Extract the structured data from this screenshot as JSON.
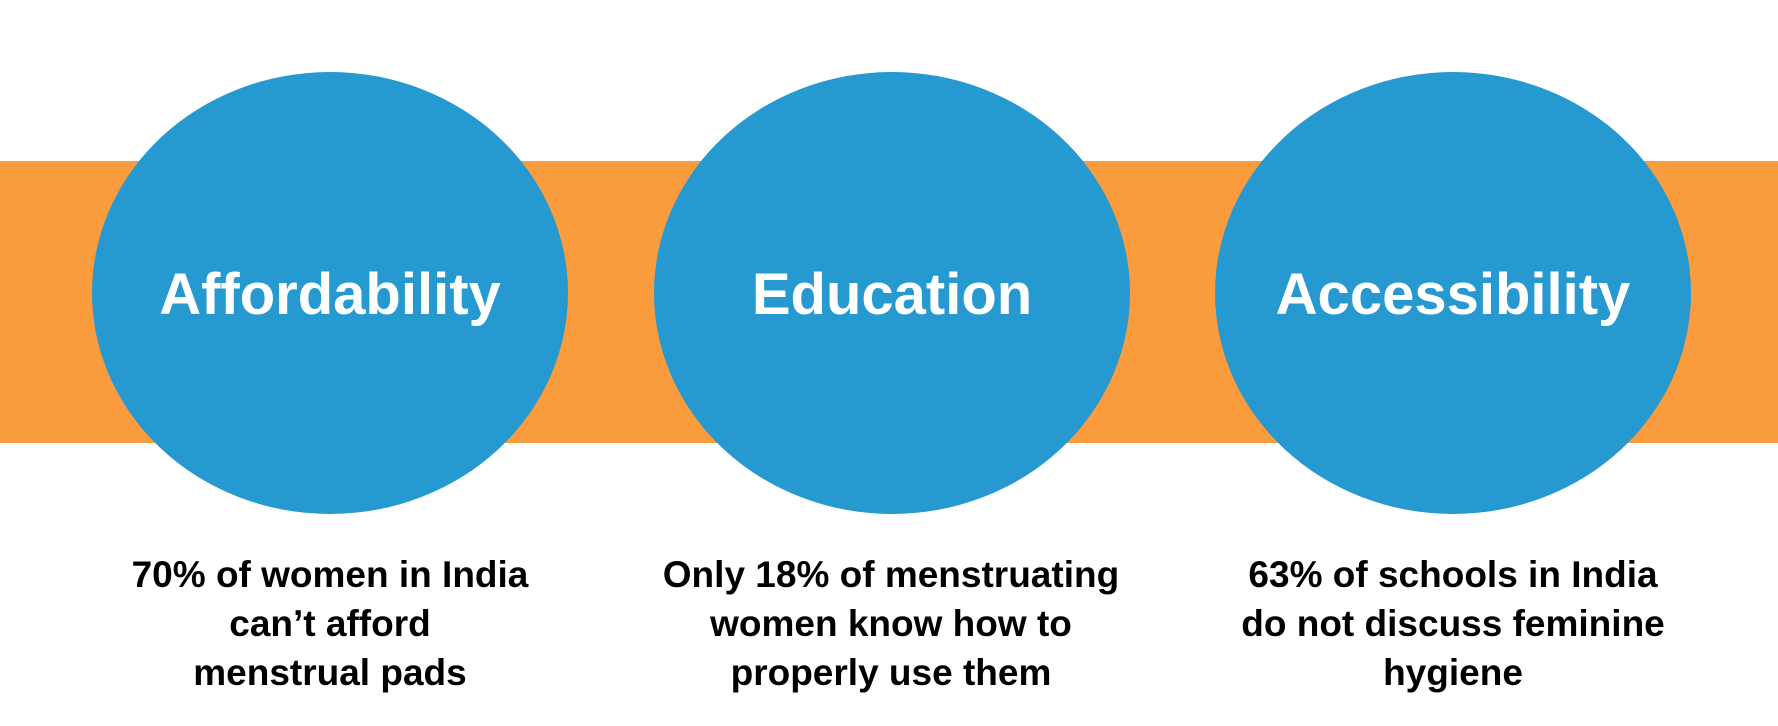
{
  "colors": {
    "band": "#fa9c3e",
    "circle": "#2699d0",
    "circle_text": "#ffffff",
    "caption_text": "#000000"
  },
  "items": [
    {
      "title": "Affordability",
      "caption_lines": [
        "70% of women in India",
        "can’t afford",
        "menstrual pads"
      ]
    },
    {
      "title": "Education",
      "caption_lines": [
        "Only 18% of menstruating",
        "women know how to",
        "properly use them"
      ]
    },
    {
      "title": "Accessibility",
      "caption_lines": [
        "63% of schools in India",
        "do not discuss feminine",
        "hygiene"
      ]
    }
  ]
}
